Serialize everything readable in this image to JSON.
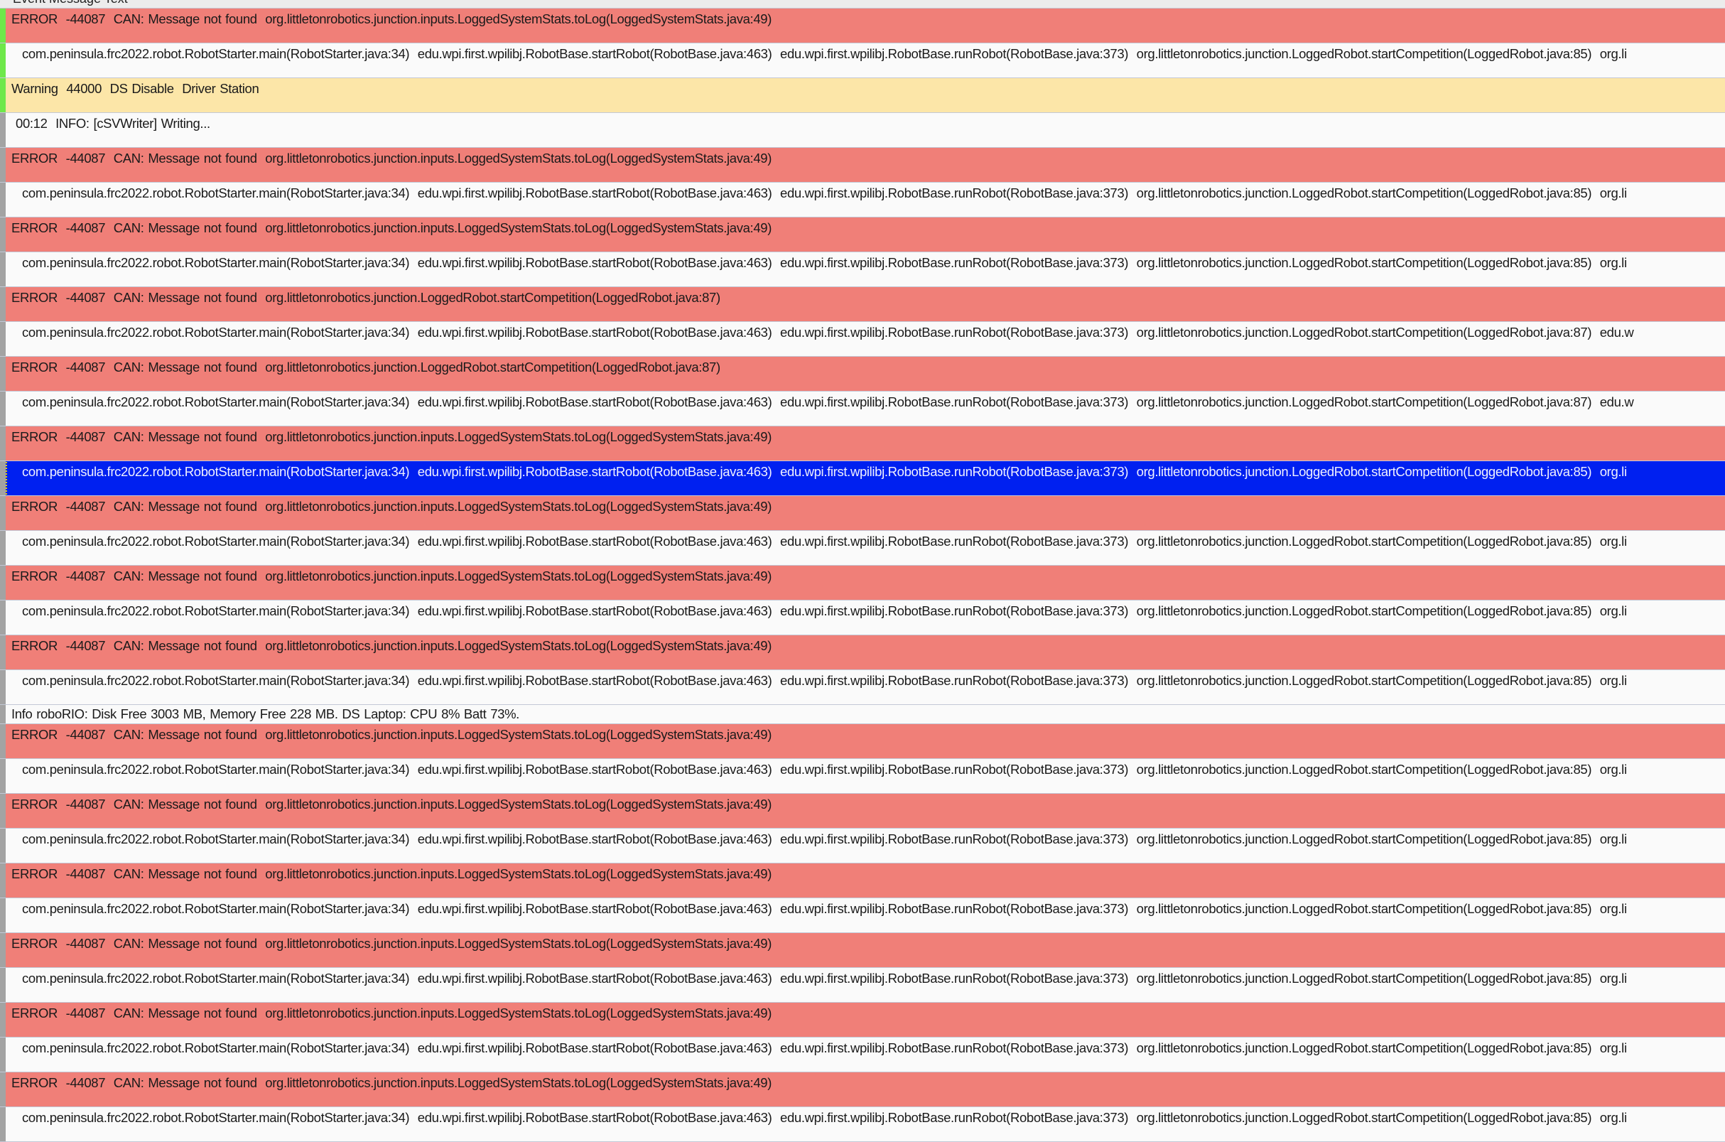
{
  "header": {
    "column_label": "Event Message Text"
  },
  "colors": {
    "error": "#f07f78",
    "warning": "#fce6a8",
    "selected": "#0020f0",
    "strip_new": "#6ee84a",
    "strip_old": "#a3a3a3"
  },
  "rows": [
    {
      "type": "error",
      "strip": "green",
      "text": "ERROR  -44087  CAN: Message not found  org.littletonrobotics.junction.inputs.LoggedSystemStats.toLog(LoggedSystemStats.java:49)"
    },
    {
      "type": "stack",
      "strip": "green",
      "text": "com.peninsula.frc2022.robot.RobotStarter.main(RobotStarter.java:34)  edu.wpi.first.wpilibj.RobotBase.startRobot(RobotBase.java:463)  edu.wpi.first.wpilibj.RobotBase.runRobot(RobotBase.java:373)  org.littletonrobotics.junction.LoggedRobot.startCompetition(LoggedRobot.java:85)  org.li"
    },
    {
      "type": "warning",
      "strip": "green",
      "text": "Warning  44000  DS Disable  Driver Station"
    },
    {
      "type": "infow",
      "text": "00:12  INFO: [cSVWriter] Writing..."
    },
    {
      "type": "error",
      "text": "ERROR  -44087  CAN: Message not found  org.littletonrobotics.junction.inputs.LoggedSystemStats.toLog(LoggedSystemStats.java:49)"
    },
    {
      "type": "stack",
      "text": "com.peninsula.frc2022.robot.RobotStarter.main(RobotStarter.java:34)  edu.wpi.first.wpilibj.RobotBase.startRobot(RobotBase.java:463)  edu.wpi.first.wpilibj.RobotBase.runRobot(RobotBase.java:373)  org.littletonrobotics.junction.LoggedRobot.startCompetition(LoggedRobot.java:85)  org.li"
    },
    {
      "type": "error",
      "text": "ERROR  -44087  CAN: Message not found  org.littletonrobotics.junction.inputs.LoggedSystemStats.toLog(LoggedSystemStats.java:49)"
    },
    {
      "type": "stack",
      "text": "com.peninsula.frc2022.robot.RobotStarter.main(RobotStarter.java:34)  edu.wpi.first.wpilibj.RobotBase.startRobot(RobotBase.java:463)  edu.wpi.first.wpilibj.RobotBase.runRobot(RobotBase.java:373)  org.littletonrobotics.junction.LoggedRobot.startCompetition(LoggedRobot.java:85)  org.li"
    },
    {
      "type": "error",
      "text": "ERROR  -44087  CAN: Message not found  org.littletonrobotics.junction.LoggedRobot.startCompetition(LoggedRobot.java:87)"
    },
    {
      "type": "stack",
      "text": "com.peninsula.frc2022.robot.RobotStarter.main(RobotStarter.java:34)  edu.wpi.first.wpilibj.RobotBase.startRobot(RobotBase.java:463)  edu.wpi.first.wpilibj.RobotBase.runRobot(RobotBase.java:373)  org.littletonrobotics.junction.LoggedRobot.startCompetition(LoggedRobot.java:87)  edu.w"
    },
    {
      "type": "error",
      "text": "ERROR  -44087  CAN: Message not found  org.littletonrobotics.junction.LoggedRobot.startCompetition(LoggedRobot.java:87)"
    },
    {
      "type": "stack",
      "text": "com.peninsula.frc2022.robot.RobotStarter.main(RobotStarter.java:34)  edu.wpi.first.wpilibj.RobotBase.startRobot(RobotBase.java:463)  edu.wpi.first.wpilibj.RobotBase.runRobot(RobotBase.java:373)  org.littletonrobotics.junction.LoggedRobot.startCompetition(LoggedRobot.java:87)  edu.w"
    },
    {
      "type": "error",
      "text": "ERROR  -44087  CAN: Message not found  org.littletonrobotics.junction.inputs.LoggedSystemStats.toLog(LoggedSystemStats.java:49)"
    },
    {
      "type": "stack",
      "selected": true,
      "text": "com.peninsula.frc2022.robot.RobotStarter.main(RobotStarter.java:34)  edu.wpi.first.wpilibj.RobotBase.startRobot(RobotBase.java:463)  edu.wpi.first.wpilibj.RobotBase.runRobot(RobotBase.java:373)  org.littletonrobotics.junction.LoggedRobot.startCompetition(LoggedRobot.java:85)  org.li"
    },
    {
      "type": "error",
      "text": "ERROR  -44087  CAN: Message not found  org.littletonrobotics.junction.inputs.LoggedSystemStats.toLog(LoggedSystemStats.java:49)"
    },
    {
      "type": "stack",
      "text": "com.peninsula.frc2022.robot.RobotStarter.main(RobotStarter.java:34)  edu.wpi.first.wpilibj.RobotBase.startRobot(RobotBase.java:463)  edu.wpi.first.wpilibj.RobotBase.runRobot(RobotBase.java:373)  org.littletonrobotics.junction.LoggedRobot.startCompetition(LoggedRobot.java:85)  org.li"
    },
    {
      "type": "error",
      "text": "ERROR  -44087  CAN: Message not found  org.littletonrobotics.junction.inputs.LoggedSystemStats.toLog(LoggedSystemStats.java:49)"
    },
    {
      "type": "stack",
      "text": "com.peninsula.frc2022.robot.RobotStarter.main(RobotStarter.java:34)  edu.wpi.first.wpilibj.RobotBase.startRobot(RobotBase.java:463)  edu.wpi.first.wpilibj.RobotBase.runRobot(RobotBase.java:373)  org.littletonrobotics.junction.LoggedRobot.startCompetition(LoggedRobot.java:85)  org.li"
    },
    {
      "type": "error",
      "text": "ERROR  -44087  CAN: Message not found  org.littletonrobotics.junction.inputs.LoggedSystemStats.toLog(LoggedSystemStats.java:49)"
    },
    {
      "type": "stack",
      "text": "com.peninsula.frc2022.robot.RobotStarter.main(RobotStarter.java:34)  edu.wpi.first.wpilibj.RobotBase.startRobot(RobotBase.java:463)  edu.wpi.first.wpilibj.RobotBase.runRobot(RobotBase.java:373)  org.littletonrobotics.junction.LoggedRobot.startCompetition(LoggedRobot.java:85)  org.li"
    },
    {
      "type": "info",
      "text": "Info roboRIO: Disk Free 3003 MB, Memory Free 228 MB. DS Laptop: CPU 8% Batt 73%."
    },
    {
      "type": "error",
      "text": "ERROR  -44087  CAN: Message not found  org.littletonrobotics.junction.inputs.LoggedSystemStats.toLog(LoggedSystemStats.java:49)"
    },
    {
      "type": "stack",
      "text": "com.peninsula.frc2022.robot.RobotStarter.main(RobotStarter.java:34)  edu.wpi.first.wpilibj.RobotBase.startRobot(RobotBase.java:463)  edu.wpi.first.wpilibj.RobotBase.runRobot(RobotBase.java:373)  org.littletonrobotics.junction.LoggedRobot.startCompetition(LoggedRobot.java:85)  org.li"
    },
    {
      "type": "error",
      "text": "ERROR  -44087  CAN: Message not found  org.littletonrobotics.junction.inputs.LoggedSystemStats.toLog(LoggedSystemStats.java:49)"
    },
    {
      "type": "stack",
      "text": "com.peninsula.frc2022.robot.RobotStarter.main(RobotStarter.java:34)  edu.wpi.first.wpilibj.RobotBase.startRobot(RobotBase.java:463)  edu.wpi.first.wpilibj.RobotBase.runRobot(RobotBase.java:373)  org.littletonrobotics.junction.LoggedRobot.startCompetition(LoggedRobot.java:85)  org.li"
    },
    {
      "type": "error",
      "text": "ERROR  -44087  CAN: Message not found  org.littletonrobotics.junction.inputs.LoggedSystemStats.toLog(LoggedSystemStats.java:49)"
    },
    {
      "type": "stack",
      "text": "com.peninsula.frc2022.robot.RobotStarter.main(RobotStarter.java:34)  edu.wpi.first.wpilibj.RobotBase.startRobot(RobotBase.java:463)  edu.wpi.first.wpilibj.RobotBase.runRobot(RobotBase.java:373)  org.littletonrobotics.junction.LoggedRobot.startCompetition(LoggedRobot.java:85)  org.li"
    },
    {
      "type": "error",
      "text": "ERROR  -44087  CAN: Message not found  org.littletonrobotics.junction.inputs.LoggedSystemStats.toLog(LoggedSystemStats.java:49)"
    },
    {
      "type": "stack",
      "text": "com.peninsula.frc2022.robot.RobotStarter.main(RobotStarter.java:34)  edu.wpi.first.wpilibj.RobotBase.startRobot(RobotBase.java:463)  edu.wpi.first.wpilibj.RobotBase.runRobot(RobotBase.java:373)  org.littletonrobotics.junction.LoggedRobot.startCompetition(LoggedRobot.java:85)  org.li"
    },
    {
      "type": "error",
      "text": "ERROR  -44087  CAN: Message not found  org.littletonrobotics.junction.inputs.LoggedSystemStats.toLog(LoggedSystemStats.java:49)"
    },
    {
      "type": "stack",
      "text": "com.peninsula.frc2022.robot.RobotStarter.main(RobotStarter.java:34)  edu.wpi.first.wpilibj.RobotBase.startRobot(RobotBase.java:463)  edu.wpi.first.wpilibj.RobotBase.runRobot(RobotBase.java:373)  org.littletonrobotics.junction.LoggedRobot.startCompetition(LoggedRobot.java:85)  org.li"
    },
    {
      "type": "error",
      "text": "ERROR  -44087  CAN: Message not found  org.littletonrobotics.junction.inputs.LoggedSystemStats.toLog(LoggedSystemStats.java:49)"
    },
    {
      "type": "stack",
      "text": "com.peninsula.frc2022.robot.RobotStarter.main(RobotStarter.java:34)  edu.wpi.first.wpilibj.RobotBase.startRobot(RobotBase.java:463)  edu.wpi.first.wpilibj.RobotBase.runRobot(RobotBase.java:373)  org.littletonrobotics.junction.LoggedRobot.startCompetition(LoggedRobot.java:85)  org.li"
    }
  ]
}
